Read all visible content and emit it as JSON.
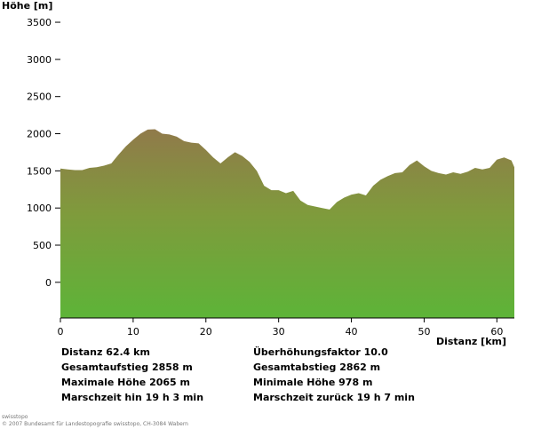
{
  "chart_data": {
    "type": "area",
    "ylabel": "Höhe [m]",
    "xlabel": "Distanz [km]",
    "ylim": [
      -480,
      3620
    ],
    "xlim": [
      0,
      62.4
    ],
    "yticks": [
      "3500",
      "3000",
      "2500",
      "2000",
      "1500",
      "1000",
      "500",
      "0"
    ],
    "xticks": [
      "0",
      "10",
      "20",
      "30",
      "40",
      "50",
      "60"
    ],
    "fill_top": "#907a4a",
    "fill_mid": "#7f9b3c",
    "fill_bottom": "#5db438",
    "x": [
      0,
      1,
      2,
      3,
      4,
      5,
      6,
      7,
      8,
      9,
      10,
      11,
      12,
      13,
      14,
      15,
      16,
      17,
      18,
      19,
      20,
      21,
      22,
      23,
      24,
      25,
      26,
      27,
      28,
      29,
      30,
      31,
      32,
      33,
      34,
      35,
      36,
      37,
      38,
      39,
      40,
      41,
      42,
      43,
      44,
      45,
      46,
      47,
      48,
      49,
      50,
      51,
      52,
      53,
      54,
      55,
      56,
      57,
      58,
      59,
      60,
      61,
      62,
      62.4
    ],
    "y": [
      1530,
      1520,
      1510,
      1510,
      1540,
      1550,
      1570,
      1600,
      1720,
      1830,
      1920,
      2000,
      2055,
      2060,
      2000,
      1990,
      1960,
      1900,
      1880,
      1870,
      1780,
      1680,
      1600,
      1680,
      1750,
      1700,
      1620,
      1500,
      1300,
      1240,
      1240,
      1200,
      1230,
      1100,
      1040,
      1020,
      1000,
      980,
      1080,
      1140,
      1180,
      1200,
      1170,
      1300,
      1380,
      1430,
      1470,
      1480,
      1580,
      1640,
      1560,
      1500,
      1470,
      1450,
      1480,
      1460,
      1490,
      1540,
      1520,
      1540,
      1650,
      1680,
      1640,
      1550
    ]
  },
  "stats": {
    "distanz": "Distanz  62.4 km",
    "ueberhoehung": "Überhöhungsfaktor  10.0",
    "aufstieg": "Gesamtaufstieg   2858 m",
    "abstieg": "Gesamtabstieg   2862 m",
    "max_hoehe": "Maximale Höhe   2065 m",
    "min_hoehe": "Minimale Höhe   978 m",
    "zeit_hin": "Marschzeit hin   19 h 3 min",
    "zeit_zurueck": "Marschzeit zurück   19 h 7 min"
  },
  "footer": {
    "line1": "swisstopo",
    "line2": "© 2007 Bundesamt für Landestopografie swisstopo, CH-3084 Wabern"
  }
}
